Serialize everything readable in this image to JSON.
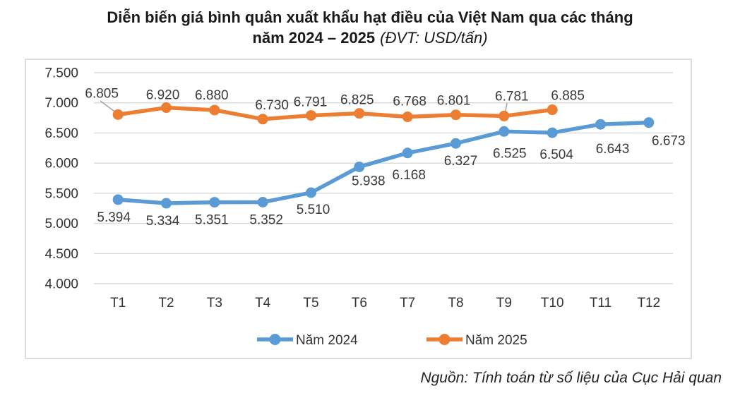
{
  "title": {
    "line1": "Diễn biến giá bình quân xuất khẩu hạt điều của Việt Nam qua các tháng",
    "line2_bold": "năm 2024 – 2025",
    "line2_italic": "(ĐVT: USD/tấn)"
  },
  "source_note": "Nguồn: Tính toán từ số liệu của Cục Hải quan",
  "colors": {
    "year2024": "#5B9BD5",
    "year2025": "#ED7D31",
    "gridline": "#D9D9D9",
    "leader_line": "#A6A6A6",
    "label_text": "#3a3a3a",
    "frame_border": "#dcdcdc"
  },
  "chart_data": {
    "type": "line",
    "title": "Diễn biến giá bình quân xuất khẩu hạt điều của Việt Nam qua các tháng năm 2024 – 2025",
    "unit": "USD/tấn",
    "categories": [
      "T1",
      "T2",
      "T3",
      "T4",
      "T5",
      "T6",
      "T7",
      "T8",
      "T9",
      "T10",
      "T11",
      "T12"
    ],
    "series": [
      {
        "name": "Năm 2024",
        "color_key": "year2024",
        "values": [
          5394,
          5334,
          5351,
          5352,
          5510,
          5938,
          6168,
          6327,
          6525,
          6504,
          6643,
          6673
        ],
        "point_labels": [
          "5.394",
          "5.334",
          "5.351",
          "5.352",
          "5.510",
          "5.938",
          "6.168",
          "6.327",
          "6.525",
          "6.504",
          "6.643",
          "6.673"
        ]
      },
      {
        "name": "Năm 2025",
        "color_key": "year2025",
        "values": [
          6805,
          6920,
          6880,
          6730,
          6791,
          6825,
          6768,
          6801,
          6781,
          6885
        ],
        "point_labels": [
          "6.805",
          "6.920",
          "6.880",
          "6.730",
          "6.791",
          "6.825",
          "6.768",
          "6.801",
          "6.781",
          "6.885"
        ]
      }
    ],
    "y_axis": {
      "min": 4000,
      "max": 7500,
      "step": 500,
      "tick_labels": [
        "7.500",
        "7.000",
        "6.500",
        "6.000",
        "5.500",
        "5.000",
        "4.500",
        "4.000"
      ]
    },
    "x_axis": {
      "label": ""
    },
    "grid": "horizontal",
    "legend_position": "bottom"
  }
}
